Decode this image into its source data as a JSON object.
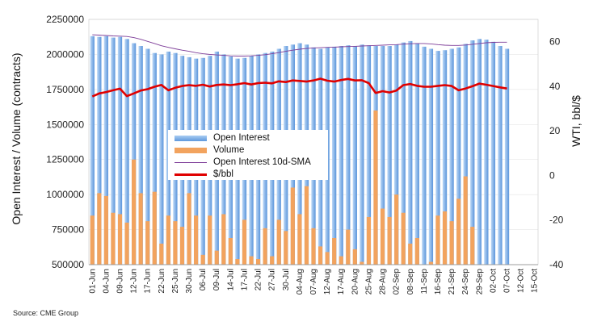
{
  "source": "Source: CME Group",
  "chart_data": {
    "type": "bar",
    "y_left": {
      "label": "Open Interest / Volume (contracts)",
      "range": [
        500000,
        2250000
      ],
      "ticks": [
        "500000",
        "750000",
        "1000000",
        "1250000",
        "1500000",
        "1750000",
        "2000000",
        "2250000"
      ],
      "tick_values": [
        500000,
        750000,
        1000000,
        1250000,
        1500000,
        1750000,
        2000000,
        2250000
      ]
    },
    "y_right": {
      "label": "WTI, bbl/$",
      "range": [
        -40,
        70
      ],
      "ticks": [
        "60",
        "40",
        "20",
        "0",
        "-20",
        "-40"
      ],
      "tick_values": [
        60,
        40,
        20,
        0,
        -20,
        -40
      ]
    },
    "x_ticks": [
      "01-Jun",
      "04-Jun",
      "09-Jun",
      "12-Jun",
      "17-Jun",
      "22-Jun",
      "25-Jun",
      "30-Jun",
      "06-Jul",
      "09-Jul",
      "14-Jul",
      "17-Jul",
      "22-Jul",
      "27-Jul",
      "30-Jul",
      "04-Aug",
      "07-Aug",
      "12-Aug",
      "17-Aug",
      "20-Aug",
      "25-Aug",
      "28-Aug",
      "02-Sep",
      "08-Sep",
      "11-Sep",
      "16-Sep",
      "21-Sep",
      "24-Sep",
      "29-Sep",
      "02-Oct",
      "07-Oct",
      "12-Oct",
      "15-Oct"
    ],
    "x_tick_index": [
      0,
      2,
      4,
      6,
      8,
      10,
      12,
      14,
      16,
      18,
      20,
      22,
      24,
      26,
      28,
      30,
      32,
      34,
      36,
      38,
      40,
      42,
      44,
      46,
      48,
      50,
      52,
      54,
      56,
      58,
      60,
      62,
      64
    ],
    "num_slots": 65,
    "num_data": 61,
    "legend": [
      "Open Interest",
      "Volume",
      "Open Interest 10d-SMA",
      "$/bbl"
    ],
    "colors": {
      "open_interest": "#7fb0e6",
      "volume": "#f2a35e",
      "sma": "#7d3c98",
      "price": "#e00000"
    },
    "series": [
      {
        "name": "Open Interest",
        "axis": "left",
        "values": [
          2130000,
          2125000,
          2130000,
          2120000,
          2125000,
          2110000,
          2080000,
          2060000,
          2040000,
          2010000,
          2000000,
          2020000,
          2010000,
          1990000,
          1980000,
          1970000,
          1975000,
          1990000,
          2020000,
          2000000,
          1985000,
          1970000,
          1975000,
          1990000,
          2000000,
          2010000,
          2020000,
          2040000,
          2060000,
          2070000,
          2080000,
          2070000,
          2050000,
          2040000,
          2050000,
          2055000,
          2060000,
          2065000,
          2060000,
          2070000,
          2065000,
          2060000,
          2060000,
          2060000,
          2070000,
          2085000,
          2095000,
          2080000,
          2055000,
          2040000,
          2025000,
          2030000,
          2040000,
          2050000,
          2075000,
          2100000,
          2110000,
          2105000,
          2090000,
          2060000,
          2040000
        ]
      },
      {
        "name": "Volume",
        "axis": "left",
        "values": [
          850000,
          1010000,
          990000,
          870000,
          860000,
          800000,
          1250000,
          1010000,
          810000,
          1020000,
          650000,
          850000,
          810000,
          770000,
          1010000,
          850000,
          570000,
          850000,
          600000,
          860000,
          690000,
          540000,
          820000,
          560000,
          540000,
          760000,
          560000,
          820000,
          740000,
          1050000,
          860000,
          1060000,
          760000,
          630000,
          590000,
          690000,
          560000,
          750000,
          610000,
          520000,
          840000,
          1600000,
          900000,
          840000,
          1000000,
          870000,
          650000,
          690000,
          500000,
          520000,
          850000,
          880000,
          810000,
          970000,
          1130000,
          770000,
          500000,
          500000,
          500000,
          500000,
          500000
        ]
      },
      {
        "name": "Open Interest 10d-SMA",
        "axis": "left",
        "values": [
          2140000,
          2138000,
          2135000,
          2132000,
          2130000,
          2128000,
          2120000,
          2108000,
          2093000,
          2078000,
          2062000,
          2050000,
          2040000,
          2030000,
          2022000,
          2012000,
          2005000,
          2000000,
          1996000,
          1993000,
          1990000,
          1988000,
          1988000,
          1990000,
          1993000,
          1998000,
          2005000,
          2013000,
          2022000,
          2030000,
          2037000,
          2042000,
          2046000,
          2048000,
          2050000,
          2052000,
          2054000,
          2056000,
          2058000,
          2060000,
          2062000,
          2064000,
          2066000,
          2068000,
          2070000,
          2073000,
          2076000,
          2078000,
          2078000,
          2075000,
          2070000,
          2066000,
          2064000,
          2064000,
          2067000,
          2072000,
          2078000,
          2083000,
          2086000,
          2087000,
          2087000
        ]
      },
      {
        "name": "$/bbl",
        "axis": "right",
        "values": [
          35.4,
          36.8,
          37.4,
          38.2,
          38.9,
          35.6,
          36.8,
          38.1,
          38.7,
          39.8,
          40.6,
          38.2,
          39.3,
          40.1,
          40.5,
          40.2,
          40.7,
          39.9,
          40.6,
          40.8,
          40.5,
          40.9,
          41.4,
          40.8,
          41.4,
          41.6,
          41.3,
          42.2,
          41.9,
          42.6,
          42.4,
          42.1,
          42.6,
          43.4,
          42.5,
          42.1,
          42.8,
          43.3,
          42.6,
          42.7,
          41.4,
          37.0,
          37.8,
          37.2,
          38.1,
          40.5,
          41.0,
          40.2,
          39.8,
          39.8,
          40.2,
          40.5,
          40.1,
          38.2,
          39.0,
          40.0,
          41.2,
          40.7,
          40.1,
          39.5,
          39.0
        ]
      }
    ]
  }
}
